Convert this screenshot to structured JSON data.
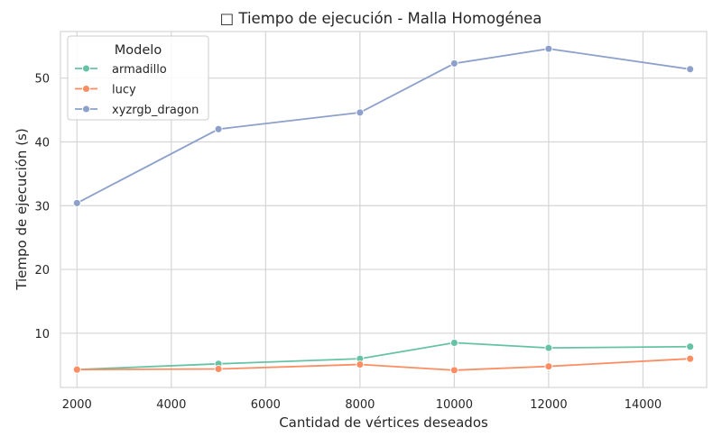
{
  "chart_data": {
    "type": "line",
    "title": "□ Tiempo de ejecución - Malla Homogénea",
    "xlabel": "Cantidad de vértices deseados",
    "ylabel": "Tiempo de ejecución (s)",
    "xlim": [
      1650,
      15350
    ],
    "ylim": [
      1.5,
      57.3
    ],
    "xticks": [
      2000,
      4000,
      6000,
      8000,
      10000,
      12000,
      14000
    ],
    "yticks": [
      10,
      20,
      30,
      40,
      50
    ],
    "grid": true,
    "legend": {
      "title": "Modelo",
      "placement": "top-left"
    },
    "x": [
      2000,
      5000,
      8000,
      10000,
      12000,
      15000
    ],
    "series": [
      {
        "name": "armadillo",
        "color": "#66c2a5",
        "values": [
          4.3,
          5.2,
          6.0,
          8.5,
          7.7,
          7.9
        ]
      },
      {
        "name": "lucy",
        "color": "#fc8d62",
        "values": [
          4.3,
          4.4,
          5.1,
          4.2,
          4.8,
          6.0
        ]
      },
      {
        "name": "xyzrgb_dragon",
        "color": "#8da0cb",
        "values": [
          30.4,
          42.0,
          44.6,
          52.3,
          54.6,
          51.4
        ]
      }
    ]
  }
}
